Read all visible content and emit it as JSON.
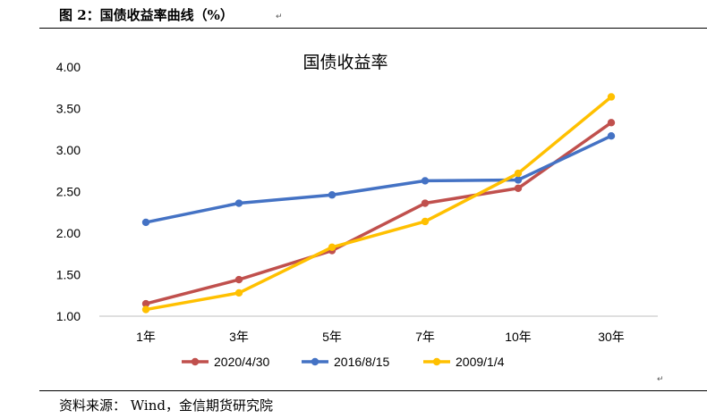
{
  "figure_title": "图 2：国债收益率曲线（%）",
  "source_text": "资料来源： Wind，金信期货研究院",
  "chart_data": {
    "type": "line",
    "title": "国债收益率",
    "xlabel": "",
    "ylabel": "",
    "categories": [
      "1年",
      "3年",
      "5年",
      "7年",
      "10年",
      "30年"
    ],
    "ylim": [
      1.0,
      4.0
    ],
    "yticks": [
      "1.00",
      "1.50",
      "2.00",
      "2.50",
      "3.00",
      "3.50",
      "4.00"
    ],
    "grid": false,
    "legend_position": "bottom",
    "series": [
      {
        "name": "2020/4/30",
        "color": "#C0504D",
        "values": [
          1.15,
          1.44,
          1.79,
          2.36,
          2.54,
          3.33
        ]
      },
      {
        "name": "2016/8/15",
        "color": "#4472C4",
        "values": [
          2.13,
          2.36,
          2.46,
          2.63,
          2.64,
          3.17
        ]
      },
      {
        "name": "2009/1/4",
        "color": "#FFC000",
        "values": [
          1.08,
          1.28,
          1.83,
          2.14,
          2.72,
          3.64
        ]
      }
    ]
  }
}
